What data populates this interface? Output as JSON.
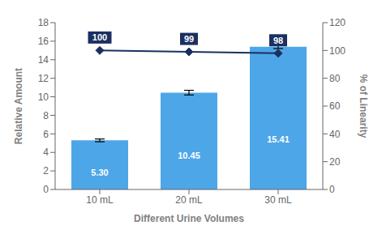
{
  "chart_data": {
    "type": "bar",
    "categories": [
      "10 mL",
      "20 mL",
      "30 mL"
    ],
    "xlabel": "Different Urine Volumes",
    "ylabel": "Relative Amount",
    "y2label": "% of Linearity",
    "ylim": [
      0,
      18
    ],
    "yticks": [
      0,
      2,
      4,
      6,
      8,
      10,
      12,
      14,
      16,
      18
    ],
    "y2lim": [
      0,
      120
    ],
    "y2ticks": [
      0,
      20,
      40,
      60,
      80,
      100,
      120
    ],
    "grid": false,
    "series": [
      {
        "type": "bar",
        "color": "#4da6e8",
        "values": [
          5.3,
          10.45,
          15.41
        ],
        "errors": [
          0.15,
          0.25,
          0.2
        ],
        "value_labels": [
          "5.30",
          "10.45",
          "15.41"
        ],
        "data_labels": true
      },
      {
        "type": "line",
        "axis": "y2",
        "color": "#1a3060",
        "marker": "diamond",
        "values": [
          100,
          99,
          98
        ],
        "data_labels": true
      }
    ]
  }
}
